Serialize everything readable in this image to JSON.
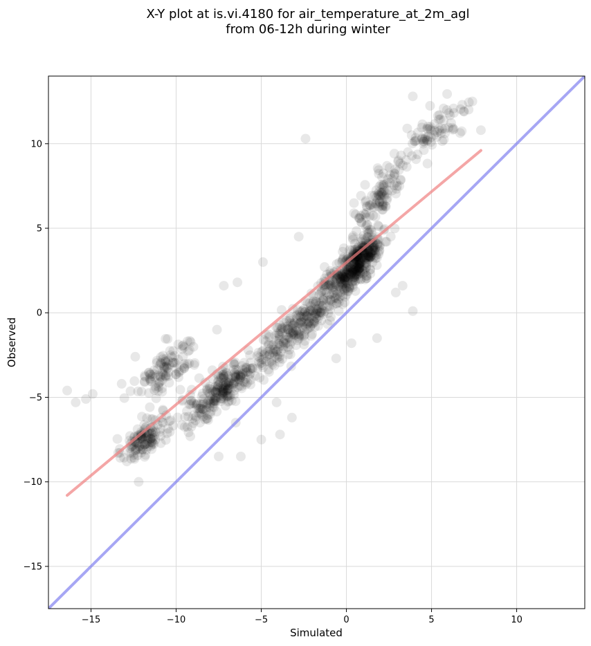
{
  "chart_data": {
    "type": "scatter",
    "title_lines": [
      "X-Y plot at is.vi.4180 for air_temperature_at_2m_agl",
      "from 06-12h during winter"
    ],
    "xlabel": "Simulated",
    "ylabel": "Observed",
    "xlim": [
      -17.5,
      14.0
    ],
    "ylim": [
      -17.5,
      14.0
    ],
    "xticks": [
      -15,
      -10,
      -5,
      0,
      5,
      10
    ],
    "yticks": [
      -15,
      -10,
      -5,
      0,
      5,
      10
    ],
    "xtick_labels": [
      "−15",
      "−10",
      "−5",
      "0",
      "5",
      "10"
    ],
    "ytick_labels": [
      "−15",
      "−10",
      "−5",
      "0",
      "5",
      "10"
    ],
    "grid": true,
    "colors": {
      "points": "#000000",
      "fit_line": "#f08080",
      "identity_line": "#8080f0",
      "grid": "#d9d9d9"
    },
    "series": [
      {
        "kind": "points",
        "opacity": 0.09,
        "clusters": [
          {
            "x": [
              -13.0,
              -11.0
            ],
            "y": [
              -9.0,
              -6.0
            ],
            "sx": 0.6,
            "sy": 0.9,
            "slope": 0.7,
            "count": 120
          },
          {
            "x": [
              -12.0,
              -9.0
            ],
            "y": [
              -5.0,
              -1.5
            ],
            "sx": 0.9,
            "sy": 1.1,
            "slope": 0.6,
            "count": 110
          },
          {
            "x": [
              -9.5,
              -5.0
            ],
            "y": [
              -6.5,
              -2.5
            ],
            "sx": 1.3,
            "sy": 1.0,
            "slope": 0.75,
            "count": 260
          },
          {
            "x": [
              -5.0,
              -1.0
            ],
            "y": [
              -3.5,
              1.5
            ],
            "sx": 1.2,
            "sy": 1.0,
            "slope": 0.8,
            "count": 220
          },
          {
            "x": [
              -2.0,
              2.0
            ],
            "y": [
              0.0,
              4.5
            ],
            "sx": 1.0,
            "sy": 1.1,
            "slope": 0.9,
            "count": 260
          },
          {
            "x": [
              0.0,
              1.8
            ],
            "y": [
              2.0,
              4.5
            ],
            "sx": 0.5,
            "sy": 0.9,
            "slope": 0.9,
            "count": 200
          },
          {
            "x": [
              0.5,
              3.5
            ],
            "y": [
              5.0,
              9.0
            ],
            "sx": 0.8,
            "sy": 1.1,
            "slope": 1.0,
            "count": 110
          },
          {
            "x": [
              3.0,
              7.5
            ],
            "y": [
              9.0,
              12.5
            ],
            "sx": 1.0,
            "sy": 0.9,
            "slope": 0.6,
            "count": 75
          }
        ],
        "outliers": [
          {
            "x": -16.4,
            "y": -4.6
          },
          {
            "x": -15.9,
            "y": -5.3
          },
          {
            "x": -15.3,
            "y": -5.1
          },
          {
            "x": -14.9,
            "y": -4.8
          },
          {
            "x": -12.2,
            "y": -10.0
          },
          {
            "x": -7.5,
            "y": -8.5
          },
          {
            "x": -6.2,
            "y": -8.5
          },
          {
            "x": -5.0,
            "y": -7.5
          },
          {
            "x": -3.9,
            "y": -7.2
          },
          {
            "x": -3.2,
            "y": -6.2
          },
          {
            "x": -2.4,
            "y": 10.3
          },
          {
            "x": 3.9,
            "y": 0.1
          },
          {
            "x": 1.8,
            "y": -1.5
          },
          {
            "x": -4.1,
            "y": -5.3
          },
          {
            "x": -6.5,
            "y": -6.5
          },
          {
            "x": 7.9,
            "y": 10.8
          },
          {
            "x": 7.4,
            "y": 12.5
          },
          {
            "x": 6.8,
            "y": 12.3
          },
          {
            "x": 3.9,
            "y": 12.8
          },
          {
            "x": 2.9,
            "y": 1.2
          },
          {
            "x": 3.3,
            "y": 1.6
          },
          {
            "x": -7.2,
            "y": 1.6
          },
          {
            "x": -6.4,
            "y": 1.8
          },
          {
            "x": -4.9,
            "y": 3.0
          },
          {
            "x": -2.8,
            "y": 4.5
          },
          {
            "x": -12.4,
            "y": -2.6
          },
          {
            "x": -13.2,
            "y": -4.2
          },
          {
            "x": -0.6,
            "y": -2.7
          },
          {
            "x": 0.3,
            "y": -1.8
          }
        ]
      },
      {
        "kind": "fit_line",
        "x": [
          -16.4,
          7.9
        ],
        "y": [
          -10.8,
          9.6
        ]
      },
      {
        "kind": "identity_line",
        "x": [
          -17.5,
          14.0
        ],
        "y": [
          -17.5,
          14.0
        ]
      }
    ]
  }
}
